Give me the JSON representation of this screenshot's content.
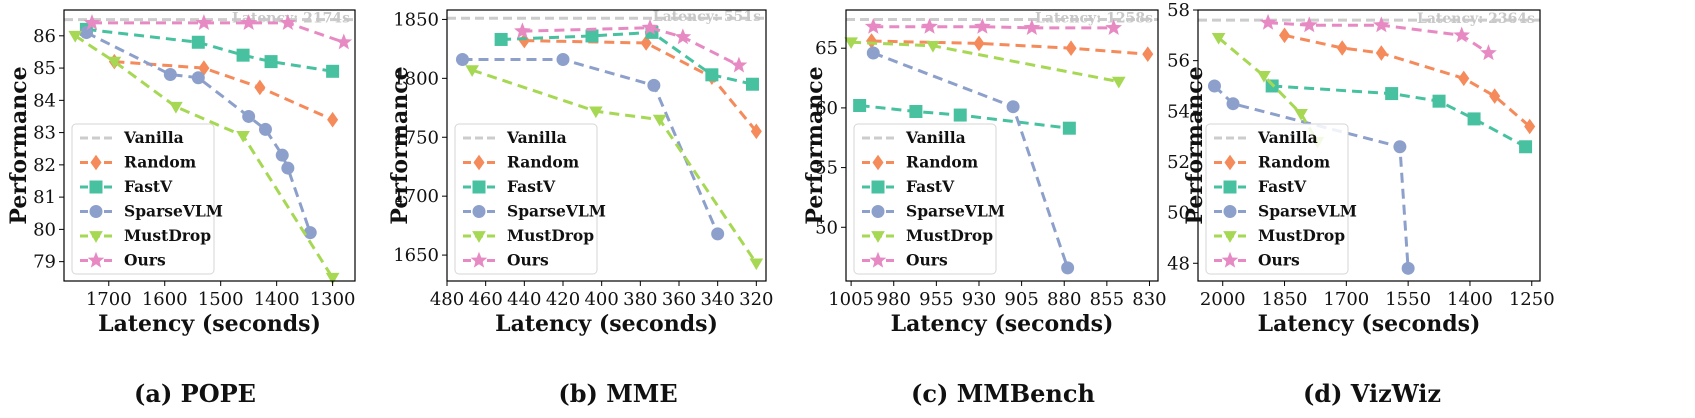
{
  "chart_data": [
    {
      "type": "line",
      "caption": "(a) POPE",
      "xlabel": "Latency (seconds)",
      "ylabel": "Performance",
      "xlim": [
        1780,
        1260
      ],
      "ylim": [
        78.4,
        86.8
      ],
      "xticks": [
        1700,
        1600,
        1500,
        1400,
        1300
      ],
      "yticks": [
        79,
        80,
        81,
        82,
        83,
        84,
        85,
        86
      ],
      "vanilla": {
        "value": 86.5,
        "label": "Latency: 2174s"
      },
      "legend_position": "lower-left",
      "series": [
        {
          "name": "Random",
          "x": [
            1690,
            1530,
            1430,
            1300
          ],
          "y": [
            85.2,
            85.0,
            84.4,
            83.4
          ]
        },
        {
          "name": "FastV",
          "x": [
            1740,
            1540,
            1460,
            1410,
            1300
          ],
          "y": [
            86.2,
            85.8,
            85.4,
            85.2,
            84.9
          ]
        },
        {
          "name": "SparseVLM",
          "x": [
            1740,
            1590,
            1540,
            1450,
            1420,
            1390,
            1380,
            1340
          ],
          "y": [
            86.1,
            84.8,
            84.7,
            83.5,
            83.1,
            82.3,
            81.9,
            79.9
          ]
        },
        {
          "name": "MustDrop",
          "x": [
            1760,
            1690,
            1580,
            1460,
            1300
          ],
          "y": [
            86.0,
            85.2,
            83.8,
            82.9,
            78.5
          ]
        },
        {
          "name": "Ours",
          "x": [
            1730,
            1530,
            1450,
            1380,
            1280
          ],
          "y": [
            86.4,
            86.4,
            86.4,
            86.4,
            85.8
          ]
        }
      ]
    },
    {
      "type": "line",
      "caption": "(b) MME",
      "xlabel": "Latency (seconds)",
      "ylabel": "Performance",
      "xlim": [
        480,
        315
      ],
      "ylim": [
        1628,
        1858
      ],
      "xticks": [
        480,
        460,
        440,
        420,
        400,
        380,
        360,
        340,
        320
      ],
      "yticks": [
        1650,
        1700,
        1750,
        1800,
        1850
      ],
      "vanilla": {
        "value": 1851,
        "label": "Latency: 551s"
      },
      "legend_position": "lower-left",
      "series": [
        {
          "name": "Random",
          "x": [
            440,
            377,
            343,
            320
          ],
          "y": [
            1832,
            1830,
            1801,
            1755
          ]
        },
        {
          "name": "FastV",
          "x": [
            452,
            405,
            374,
            343,
            322
          ],
          "y": [
            1833,
            1836,
            1839,
            1803,
            1795
          ]
        },
        {
          "name": "SparseVLM",
          "x": [
            472,
            420,
            373,
            340
          ],
          "y": [
            1816,
            1816,
            1794,
            1668
          ]
        },
        {
          "name": "MustDrop",
          "x": [
            467,
            403,
            370,
            320
          ],
          "y": [
            1807,
            1772,
            1765,
            1643
          ]
        },
        {
          "name": "Ours",
          "x": [
            441,
            375,
            358,
            329
          ],
          "y": [
            1840,
            1843,
            1835,
            1811
          ]
        }
      ]
    },
    {
      "type": "line",
      "caption": "(c) MMBench",
      "xlabel": "Latency (seconds)",
      "ylabel": "Performance",
      "xlim": [
        1008,
        825
      ],
      "ylim": [
        45.5,
        68.2
      ],
      "xticks": [
        1005,
        980,
        955,
        930,
        905,
        880,
        855,
        830
      ],
      "yticks": [
        50,
        55,
        60,
        65
      ],
      "vanilla": {
        "value": 67.4,
        "label": "Latency: 1258s"
      },
      "legend_position": "lower-left",
      "series": [
        {
          "name": "Random",
          "x": [
            993,
            930,
            876,
            831
          ],
          "y": [
            65.6,
            65.4,
            65.0,
            64.5
          ]
        },
        {
          "name": "FastV",
          "x": [
            1000,
            967,
            941,
            877
          ],
          "y": [
            60.2,
            59.7,
            59.4,
            58.3
          ]
        },
        {
          "name": "SparseVLM",
          "x": [
            992,
            910,
            878
          ],
          "y": [
            64.6,
            60.1,
            46.6
          ]
        },
        {
          "name": "MustDrop",
          "x": [
            1005,
            957,
            848
          ],
          "y": [
            65.5,
            65.2,
            62.2
          ]
        },
        {
          "name": "Ours",
          "x": [
            992,
            959,
            928,
            899,
            851
          ],
          "y": [
            66.8,
            66.8,
            66.8,
            66.7,
            66.7
          ]
        }
      ]
    },
    {
      "type": "line",
      "caption": "(d) VizWiz",
      "xlabel": "Latency (seconds)",
      "ylabel": "Performance",
      "xlim": [
        2060,
        1230
      ],
      "ylim": [
        47.3,
        58.0
      ],
      "xticks": [
        2000,
        1850,
        1700,
        1550,
        1400,
        1250
      ],
      "yticks": [
        48,
        50,
        52,
        54,
        56,
        58
      ],
      "vanilla": {
        "value": 57.6,
        "label": "Latency: 2364s"
      },
      "legend_position": "lower-left",
      "series": [
        {
          "name": "Random",
          "x": [
            1850,
            1710,
            1615,
            1415,
            1340,
            1255
          ],
          "y": [
            57.0,
            56.5,
            56.3,
            55.3,
            54.6,
            53.4
          ]
        },
        {
          "name": "FastV",
          "x": [
            1880,
            1590,
            1475,
            1390,
            1265
          ],
          "y": [
            55.0,
            54.7,
            54.4,
            53.7,
            52.6
          ]
        },
        {
          "name": "SparseVLM",
          "x": [
            2020,
            1975,
            1570,
            1550
          ],
          "y": [
            55.0,
            54.3,
            52.6,
            47.8
          ]
        },
        {
          "name": "MustDrop",
          "x": [
            2010,
            1900,
            1810,
            1770
          ],
          "y": [
            56.9,
            55.4,
            53.9,
            52.8
          ]
        },
        {
          "name": "Ours",
          "x": [
            1890,
            1790,
            1615,
            1420,
            1355
          ],
          "y": [
            57.5,
            57.4,
            57.4,
            57.0,
            56.3
          ]
        }
      ]
    }
  ],
  "legend": [
    {
      "name": "Vanilla",
      "color": "#cccccc",
      "marker": "none"
    },
    {
      "name": "Random",
      "color": "#f58a5b",
      "marker": "diamond"
    },
    {
      "name": "FastV",
      "color": "#47c1a0",
      "marker": "square"
    },
    {
      "name": "SparseVLM",
      "color": "#8da0cb",
      "marker": "circle"
    },
    {
      "name": "MustDrop",
      "color": "#a6d854",
      "marker": "triangle-down"
    },
    {
      "name": "Ours",
      "color": "#e78ac3",
      "marker": "star"
    }
  ]
}
